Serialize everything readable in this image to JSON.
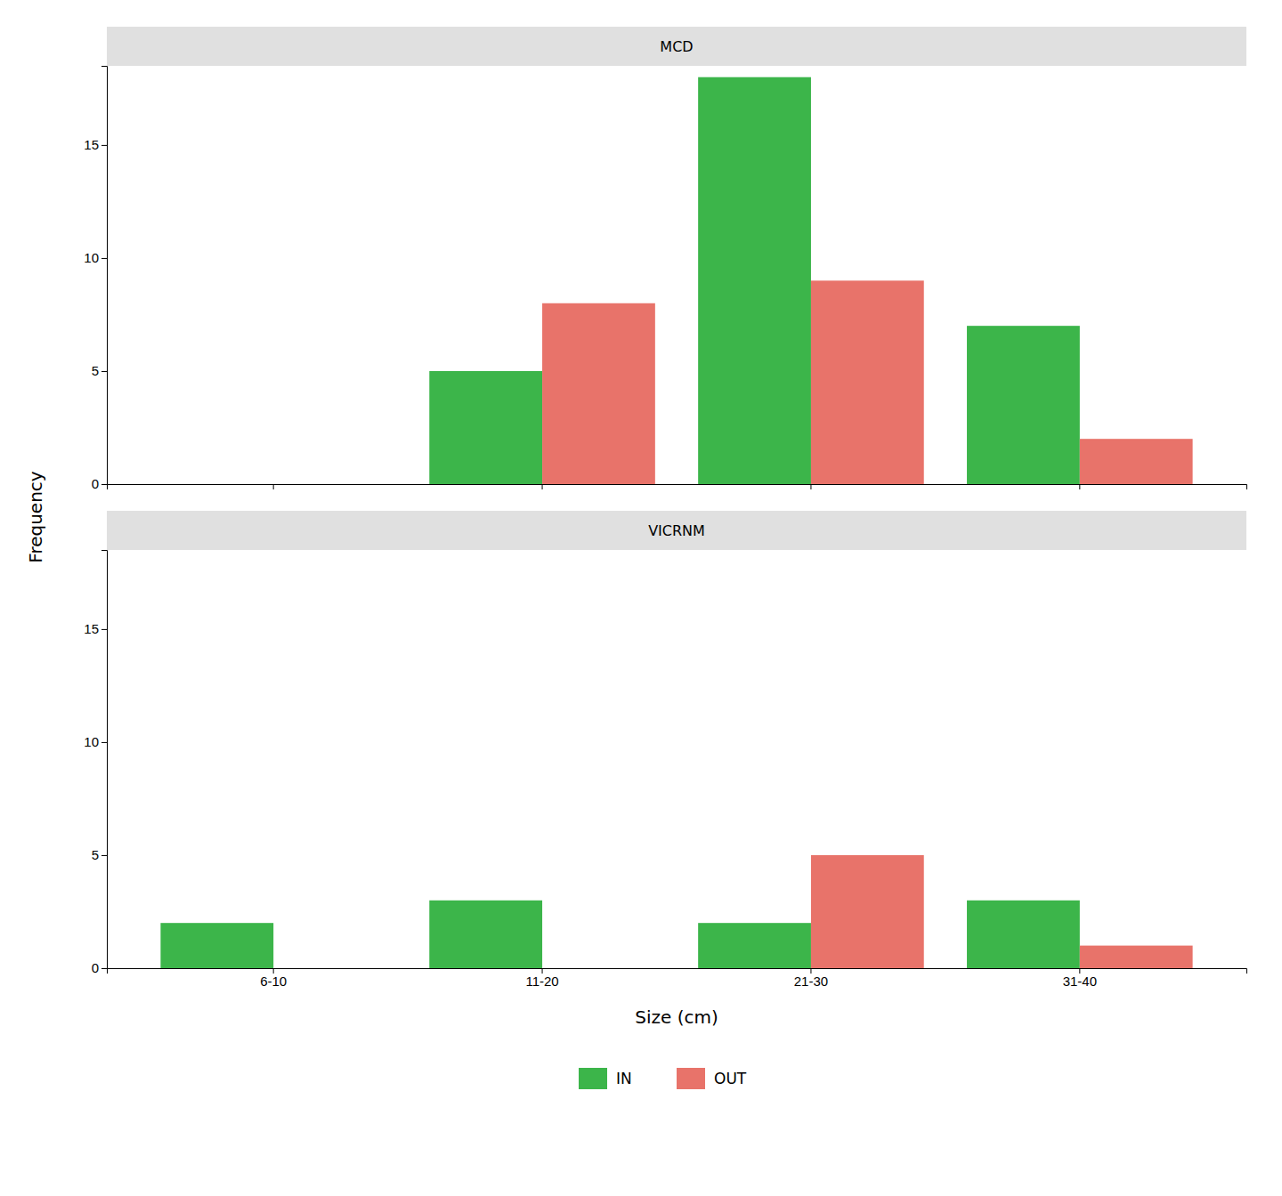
{
  "chart_data": [
    {
      "type": "bar",
      "title": "MCD",
      "ylabel": "Frequency",
      "categories": [
        "6-10",
        "11-20",
        "21-30",
        "31-40"
      ],
      "series": [
        {
          "color": "#3cb54a",
          "values": [
            0,
            5,
            18,
            7
          ]
        },
        {
          "color": "#e8736a",
          "values": [
            0,
            8,
            9,
            2
          ]
        }
      ],
      "ylim": [
        0,
        18.5
      ],
      "yticks": [
        0,
        5,
        10,
        15
      ],
      "grid": false,
      "tick_labels": "y"
    },
    {
      "type": "bar",
      "title": "VICRNM",
      "xlabel": "Size (cm)",
      "categories": [
        "6-10",
        "11-20",
        "21-30",
        "31-40"
      ],
      "series": [
        {
          "name": "IN",
          "color": "#3cb54a",
          "values": [
            2,
            3,
            2,
            3
          ]
        },
        {
          "name": "OUT",
          "color": "#e8736a",
          "values": [
            0,
            0,
            5,
            1
          ]
        }
      ],
      "ylim": [
        0,
        18.5
      ],
      "yticks": [
        0,
        5,
        10,
        15
      ],
      "grid": false,
      "legend": "bottom"
    }
  ]
}
